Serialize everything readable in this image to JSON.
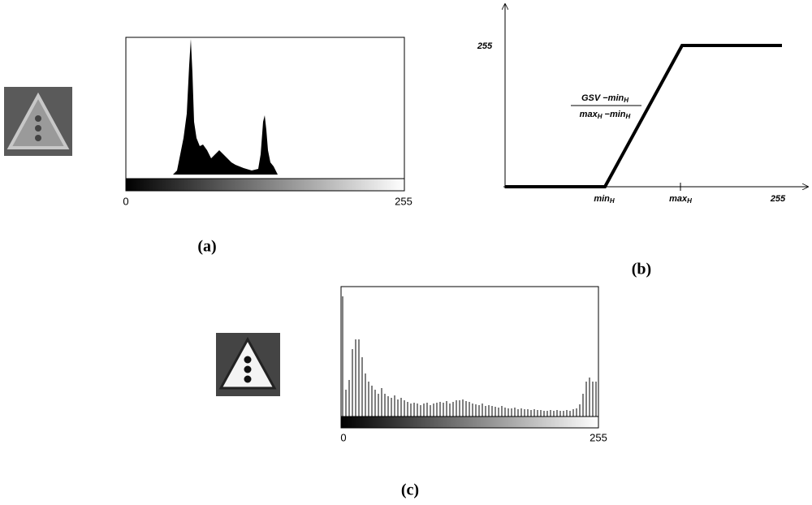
{
  "panels": [
    {
      "caption": "(a)",
      "hist_axis": {
        "min_label": "0",
        "max_label": "255"
      }
    },
    {
      "caption": "(b)",
      "y_label": "255",
      "x_labels": [
        {
          "text": "min",
          "sub": "H"
        },
        {
          "text": "max",
          "sub": "H"
        },
        {
          "text": "255"
        }
      ],
      "formula": {
        "numerator": [
          {
            "text": "GSV  −min",
            "sub": "H"
          }
        ],
        "denominator": [
          {
            "text": "max",
            "sub": "H"
          },
          {
            "text": " −min",
            "sub": "H"
          }
        ]
      }
    },
    {
      "caption": "(c)",
      "hist_axis": {
        "min_label": "0",
        "max_label": "255"
      }
    }
  ]
}
